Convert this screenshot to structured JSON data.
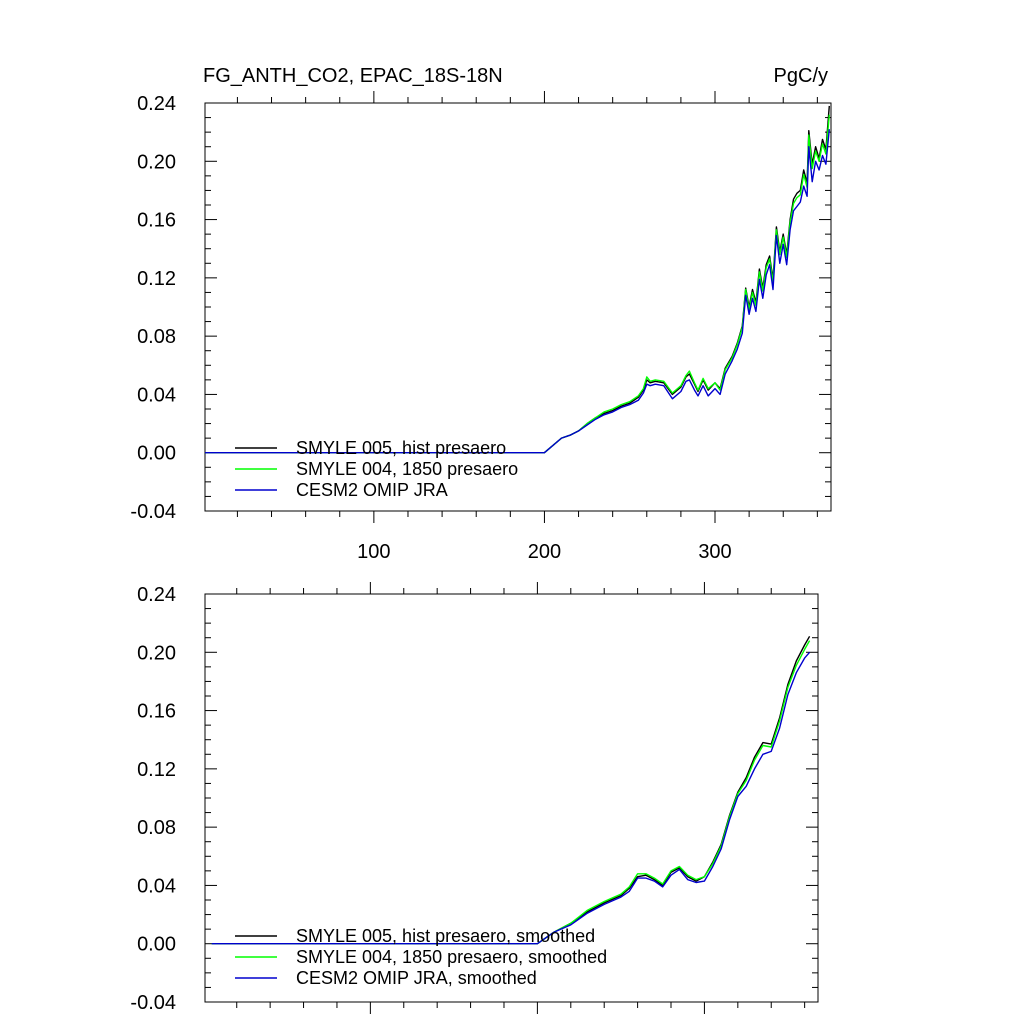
{
  "chart_data": [
    {
      "type": "line",
      "title_left": "FG_ANTH_CO2, EPAC_18S-18N",
      "title_right": "PgC/y",
      "xlabel": "",
      "ylabel": "",
      "xlim": [
        1,
        368
      ],
      "ylim": [
        -0.04,
        0.24
      ],
      "xticks": [
        100,
        200,
        300
      ],
      "yticks": [
        -0.04,
        0.0,
        0.04,
        0.08,
        0.12,
        0.16,
        0.2,
        0.24
      ],
      "ytick_labels": [
        "-0.04",
        "0.00",
        "0.04",
        "0.08",
        "0.12",
        "0.16",
        "0.20",
        "0.24"
      ],
      "xtick_labels": [
        "100",
        "200",
        "300"
      ],
      "legend_position": "bottom-left",
      "series": [
        {
          "name": "SMYLE 005, hist presaero",
          "color": "#000000",
          "x": [
            1,
            150,
            200,
            210,
            215,
            220,
            225,
            230,
            235,
            240,
            245,
            250,
            255,
            258,
            260,
            262,
            265,
            270,
            275,
            280,
            283,
            285,
            288,
            290,
            293,
            296,
            300,
            303,
            306,
            310,
            313,
            316,
            318,
            320,
            322,
            324,
            326,
            328,
            330,
            332,
            334,
            336,
            338,
            340,
            342,
            344,
            346,
            348,
            350,
            352,
            354,
            355,
            357,
            359,
            361,
            363,
            365,
            367
          ],
          "y": [
            0.0,
            0.0,
            0.0,
            0.01,
            0.012,
            0.015,
            0.02,
            0.024,
            0.027,
            0.029,
            0.032,
            0.034,
            0.038,
            0.043,
            0.05,
            0.048,
            0.049,
            0.048,
            0.04,
            0.045,
            0.052,
            0.054,
            0.047,
            0.042,
            0.05,
            0.043,
            0.048,
            0.044,
            0.058,
            0.066,
            0.075,
            0.087,
            0.113,
            0.1,
            0.112,
            0.103,
            0.126,
            0.113,
            0.129,
            0.135,
            0.119,
            0.155,
            0.138,
            0.15,
            0.136,
            0.16,
            0.174,
            0.178,
            0.18,
            0.194,
            0.185,
            0.221,
            0.198,
            0.21,
            0.202,
            0.215,
            0.208,
            0.238
          ]
        },
        {
          "name": "SMYLE 004, 1850 presaero",
          "color": "#00ff00",
          "x": [
            1,
            150,
            200,
            210,
            215,
            220,
            225,
            230,
            235,
            240,
            245,
            250,
            255,
            258,
            260,
            262,
            265,
            270,
            275,
            280,
            283,
            285,
            288,
            290,
            293,
            296,
            300,
            303,
            306,
            310,
            313,
            316,
            318,
            320,
            322,
            324,
            326,
            328,
            330,
            332,
            334,
            336,
            338,
            340,
            342,
            344,
            346,
            348,
            350,
            352,
            354,
            355,
            357,
            359,
            361,
            363,
            365,
            367
          ],
          "y": [
            0.0,
            0.0,
            0.0,
            0.01,
            0.012,
            0.015,
            0.02,
            0.024,
            0.028,
            0.03,
            0.033,
            0.035,
            0.039,
            0.044,
            0.052,
            0.049,
            0.05,
            0.049,
            0.041,
            0.046,
            0.053,
            0.056,
            0.048,
            0.043,
            0.051,
            0.044,
            0.048,
            0.043,
            0.057,
            0.065,
            0.074,
            0.086,
            0.112,
            0.098,
            0.11,
            0.101,
            0.124,
            0.111,
            0.127,
            0.133,
            0.117,
            0.153,
            0.136,
            0.148,
            0.134,
            0.158,
            0.171,
            0.175,
            0.177,
            0.191,
            0.182,
            0.218,
            0.195,
            0.207,
            0.2,
            0.212,
            0.205,
            0.232
          ]
        },
        {
          "name": "CESM2 OMIP JRA",
          "color": "#0000cd",
          "x": [
            1,
            150,
            200,
            210,
            215,
            220,
            225,
            230,
            235,
            240,
            245,
            250,
            255,
            258,
            260,
            262,
            265,
            270,
            275,
            280,
            283,
            285,
            288,
            290,
            293,
            296,
            300,
            303,
            306,
            310,
            313,
            316,
            318,
            320,
            322,
            324,
            326,
            328,
            330,
            332,
            334,
            336,
            338,
            340,
            342,
            344,
            346,
            348,
            350,
            352,
            354,
            355,
            357,
            359,
            361,
            363,
            365,
            367
          ],
          "y": [
            0.0,
            0.0,
            0.0,
            0.01,
            0.012,
            0.015,
            0.019,
            0.023,
            0.026,
            0.028,
            0.031,
            0.033,
            0.036,
            0.041,
            0.047,
            0.046,
            0.047,
            0.046,
            0.037,
            0.042,
            0.049,
            0.05,
            0.043,
            0.039,
            0.046,
            0.039,
            0.044,
            0.04,
            0.054,
            0.063,
            0.071,
            0.082,
            0.108,
            0.095,
            0.106,
            0.097,
            0.119,
            0.106,
            0.122,
            0.129,
            0.112,
            0.149,
            0.13,
            0.143,
            0.129,
            0.153,
            0.166,
            0.169,
            0.172,
            0.183,
            0.176,
            0.21,
            0.186,
            0.2,
            0.194,
            0.204,
            0.198,
            0.222
          ]
        }
      ]
    },
    {
      "type": "line",
      "title_left": "",
      "title_right": "",
      "xlabel": "",
      "ylabel": "",
      "xlim": [
        1,
        368
      ],
      "ylim": [
        -0.04,
        0.24
      ],
      "xticks": [
        100,
        200,
        300
      ],
      "yticks": [
        -0.04,
        0.0,
        0.04,
        0.08,
        0.12,
        0.16,
        0.2,
        0.24
      ],
      "ytick_labels": [
        "-0.04",
        "0.00",
        "0.04",
        "0.08",
        "0.12",
        "0.16",
        "0.20",
        "0.24"
      ],
      "xtick_labels": [],
      "legend_position": "bottom-left",
      "series": [
        {
          "name": "SMYLE 005, hist presaero, smoothed",
          "color": "#000000",
          "x": [
            5,
            150,
            200,
            210,
            220,
            230,
            240,
            250,
            255,
            260,
            265,
            270,
            275,
            280,
            285,
            290,
            295,
            300,
            305,
            310,
            315,
            320,
            325,
            330,
            335,
            340,
            345,
            350,
            355,
            360,
            363
          ],
          "y": [
            0.0,
            0.0,
            0.0,
            0.008,
            0.014,
            0.022,
            0.028,
            0.033,
            0.038,
            0.046,
            0.047,
            0.044,
            0.04,
            0.049,
            0.052,
            0.046,
            0.043,
            0.046,
            0.056,
            0.068,
            0.088,
            0.104,
            0.114,
            0.128,
            0.138,
            0.137,
            0.155,
            0.178,
            0.194,
            0.205,
            0.211
          ]
        },
        {
          "name": "SMYLE 004, 1850 presaero, smoothed",
          "color": "#00ff00",
          "x": [
            5,
            150,
            200,
            210,
            220,
            230,
            240,
            250,
            255,
            260,
            265,
            270,
            275,
            280,
            285,
            290,
            295,
            300,
            305,
            310,
            315,
            320,
            325,
            330,
            335,
            340,
            345,
            350,
            355,
            360,
            363
          ],
          "y": [
            0.0,
            0.0,
            0.0,
            0.008,
            0.014,
            0.023,
            0.029,
            0.034,
            0.039,
            0.048,
            0.048,
            0.045,
            0.041,
            0.05,
            0.053,
            0.047,
            0.044,
            0.046,
            0.055,
            0.067,
            0.087,
            0.103,
            0.112,
            0.126,
            0.136,
            0.135,
            0.153,
            0.176,
            0.191,
            0.202,
            0.208
          ]
        },
        {
          "name": "CESM2 OMIP JRA, smoothed",
          "color": "#0000cd",
          "x": [
            5,
            150,
            200,
            210,
            220,
            230,
            240,
            250,
            255,
            260,
            265,
            270,
            275,
            280,
            285,
            290,
            295,
            300,
            305,
            310,
            315,
            320,
            325,
            330,
            335,
            340,
            345,
            350,
            355,
            360,
            363
          ],
          "y": [
            0.0,
            0.0,
            0.0,
            0.008,
            0.013,
            0.021,
            0.027,
            0.032,
            0.036,
            0.045,
            0.045,
            0.043,
            0.039,
            0.047,
            0.051,
            0.044,
            0.042,
            0.043,
            0.053,
            0.065,
            0.085,
            0.101,
            0.108,
            0.12,
            0.13,
            0.132,
            0.148,
            0.171,
            0.186,
            0.196,
            0.2
          ]
        }
      ]
    }
  ]
}
